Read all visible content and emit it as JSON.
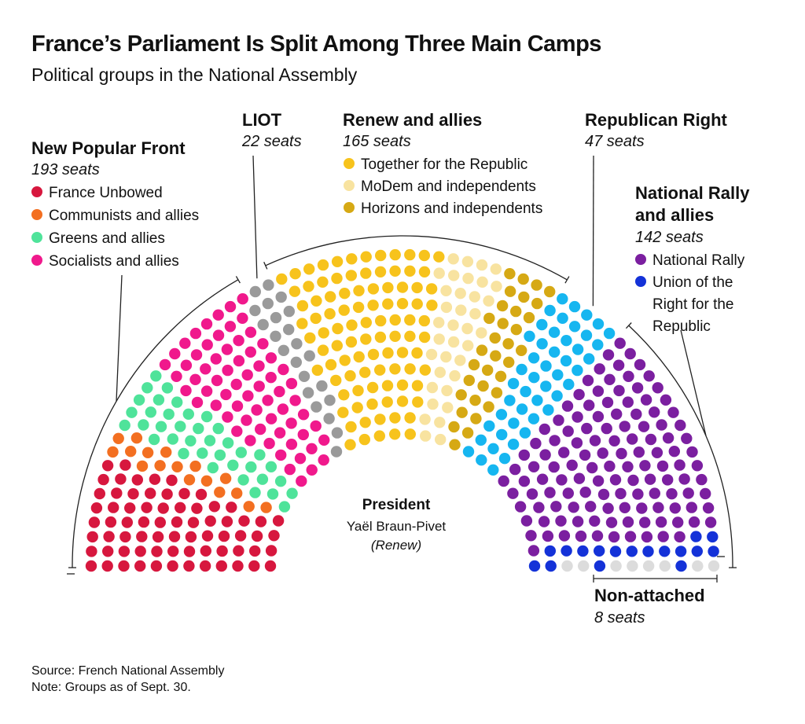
{
  "title": "France’s Parliament Is Split Among Three Main Camps",
  "subtitle": "Political groups in the National Assembly",
  "source": "Source: French National Assembly",
  "note": "Note: Groups as of Sept. 30.",
  "president": {
    "label": "President",
    "name": "Yaël Braun-Pivet",
    "party": "(Renew)"
  },
  "chart_data": {
    "type": "hemicycle",
    "total_seats": 577,
    "groups": [
      {
        "name": "New Popular Front",
        "seats_label": "193 seats",
        "seats": 193,
        "parties": [
          {
            "name": "France Unbowed",
            "seats": 71,
            "color": "#d7173e"
          },
          {
            "name": "Communists and allies",
            "seats": 17,
            "color": "#f36f21"
          },
          {
            "name": "Greens and allies",
            "seats": 38,
            "color": "#4fe39a"
          },
          {
            "name": "Socialists and allies",
            "seats": 67,
            "color": "#f0198c"
          }
        ]
      },
      {
        "name": "LIOT",
        "seats_label": "22 seats",
        "seats": 22,
        "parties": [
          {
            "name": "",
            "seats": 22,
            "color": "#9a9a9a"
          }
        ]
      },
      {
        "name": "Renew and allies",
        "seats_label": "165 seats",
        "seats": 165,
        "parties": [
          {
            "name": "Together for the Republic",
            "seats": 96,
            "color": "#f7c31c"
          },
          {
            "name": "MoDem and independents",
            "seats": 36,
            "color": "#f8e3a0"
          },
          {
            "name": "Horizons and independents",
            "seats": 33,
            "color": "#d6a914"
          }
        ]
      },
      {
        "name": "Republican Right",
        "seats_label": "47 seats",
        "seats": 47,
        "parties": [
          {
            "name": "",
            "seats": 47,
            "color": "#16b6f0"
          }
        ]
      },
      {
        "name": "National Rally and allies",
        "name_lines": [
          "National Rally",
          "and allies"
        ],
        "seats_label": "142 seats",
        "seats": 142,
        "parties": [
          {
            "name": "National Rally",
            "seats": 125,
            "color": "#7b1fa0"
          },
          {
            "name": "Union of the Right for the Republic",
            "name_lines": [
              "Union of the",
              "Right for the",
              "Republic"
            ],
            "seats": 17,
            "color": "#1432d8"
          }
        ]
      },
      {
        "name": "Non-attached",
        "seats_label": "8 seats",
        "seats": 8,
        "parties": [
          {
            "name": "",
            "seats": 8,
            "color": "#dcdcdc"
          }
        ]
      }
    ]
  }
}
